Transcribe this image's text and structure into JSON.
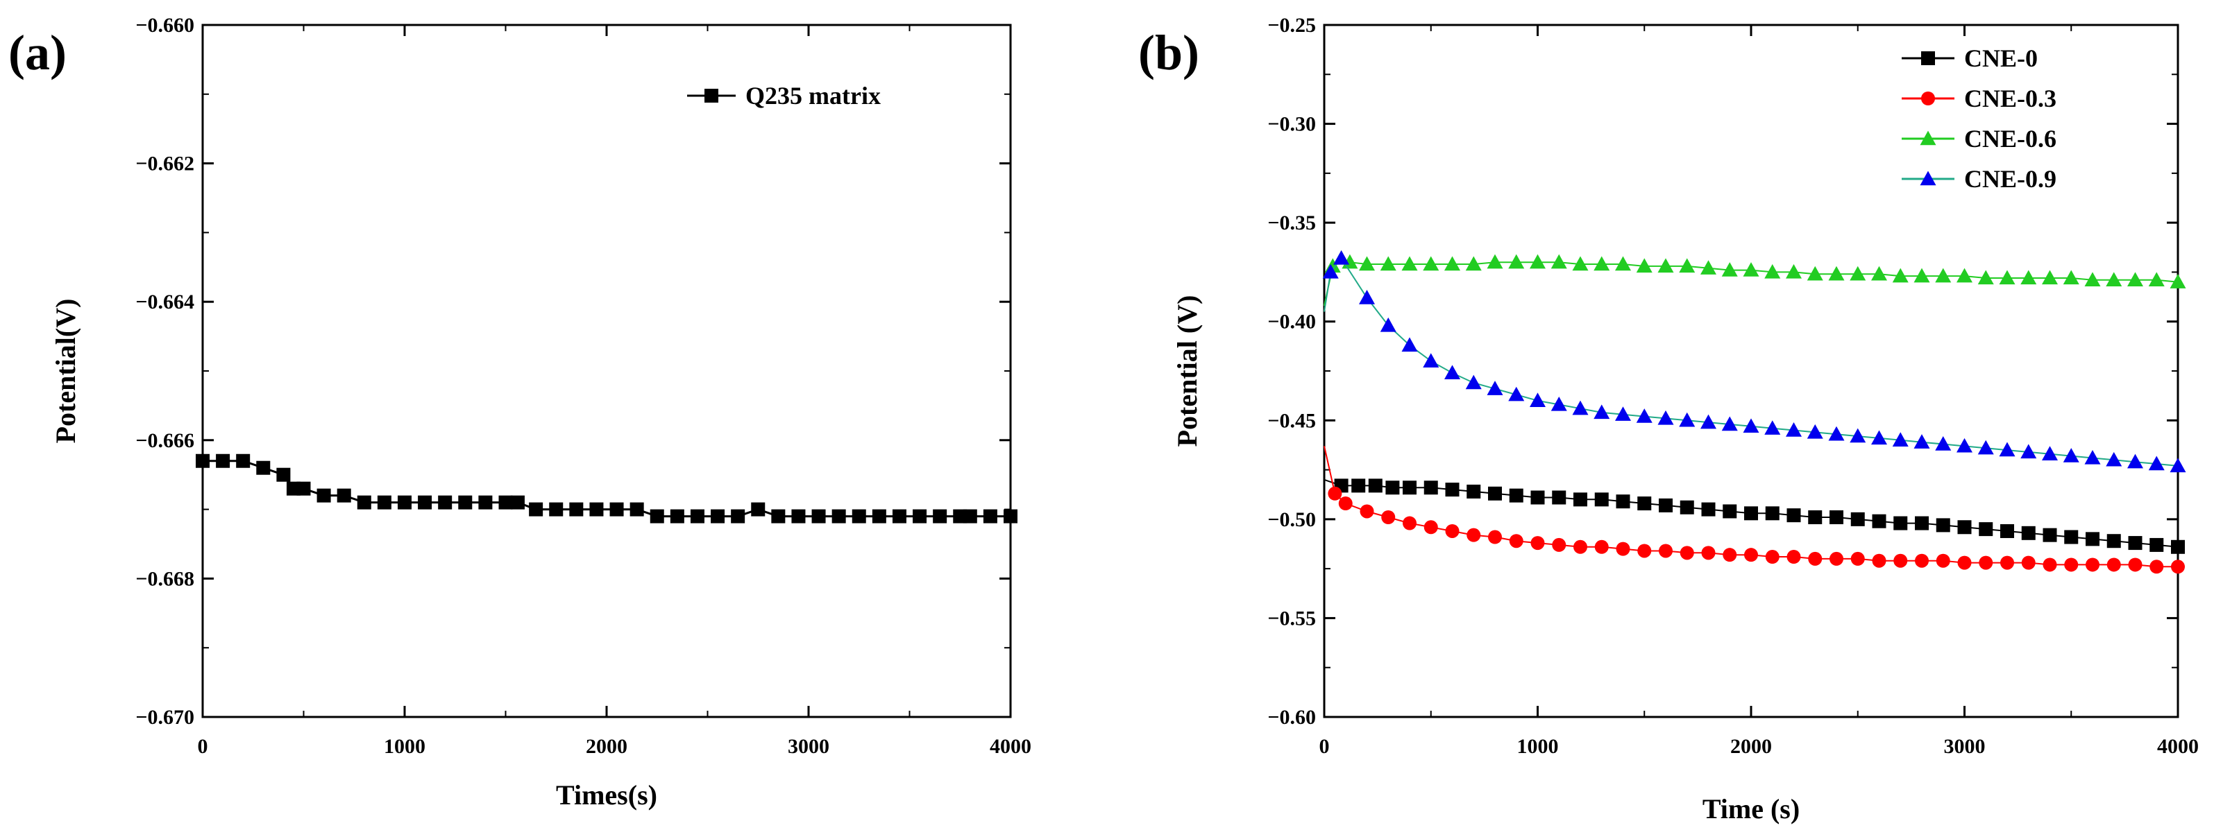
{
  "chart_data": [
    {
      "panel_label": "(a)",
      "type": "line",
      "title": "",
      "xlabel": "Times(s)",
      "ylabel": "Potential(V)",
      "xlim": [
        0,
        4000
      ],
      "ylim": [
        -0.67,
        -0.66
      ],
      "xticks": [
        0,
        1000,
        2000,
        3000,
        4000
      ],
      "yticks": [
        -0.67,
        -0.668,
        -0.666,
        -0.664,
        -0.662,
        -0.66
      ],
      "xtick_labels": [
        "0",
        "1000",
        "2000",
        "3000",
        "4000"
      ],
      "ytick_labels": [
        "−0.670",
        "−0.668",
        "−0.666",
        "−0.664",
        "−0.662",
        "−0.660"
      ],
      "legend_position": "top-right",
      "series": [
        {
          "name": "Q235 matrix",
          "color": "#000000",
          "marker": "square",
          "x": [
            0,
            100,
            200,
            300,
            400,
            450,
            500,
            600,
            700,
            800,
            900,
            1000,
            1100,
            1200,
            1300,
            1400,
            1500,
            1560,
            1650,
            1750,
            1850,
            1950,
            2050,
            2150,
            2250,
            2350,
            2450,
            2550,
            2650,
            2750,
            2850,
            2950,
            3050,
            3150,
            3250,
            3350,
            3450,
            3550,
            3650,
            3750,
            3800,
            3900,
            4000
          ],
          "y": [
            -0.6663,
            -0.6663,
            -0.6663,
            -0.6664,
            -0.6665,
            -0.6667,
            -0.6667,
            -0.6668,
            -0.6668,
            -0.6669,
            -0.6669,
            -0.6669,
            -0.6669,
            -0.6669,
            -0.6669,
            -0.6669,
            -0.6669,
            -0.6669,
            -0.667,
            -0.667,
            -0.667,
            -0.667,
            -0.667,
            -0.667,
            -0.6671,
            -0.6671,
            -0.6671,
            -0.6671,
            -0.6671,
            -0.667,
            -0.6671,
            -0.6671,
            -0.6671,
            -0.6671,
            -0.6671,
            -0.6671,
            -0.6671,
            -0.6671,
            -0.6671,
            -0.6671,
            -0.6671,
            -0.6671,
            -0.6671
          ]
        }
      ]
    },
    {
      "panel_label": "(b)",
      "type": "line",
      "title": "",
      "xlabel": "Time (s)",
      "ylabel": "Potential (V)",
      "xlim": [
        0,
        4000
      ],
      "ylim": [
        -0.6,
        -0.25
      ],
      "xticks": [
        0,
        1000,
        2000,
        3000,
        4000
      ],
      "yticks": [
        -0.6,
        -0.55,
        -0.5,
        -0.45,
        -0.4,
        -0.35,
        -0.3,
        -0.25
      ],
      "xtick_labels": [
        "0",
        "1000",
        "2000",
        "3000",
        "4000"
      ],
      "ytick_labels": [
        "−0.60",
        "−0.55",
        "−0.50",
        "−0.45",
        "−0.40",
        "−0.35",
        "−0.30",
        "−0.25"
      ],
      "legend_position": "top-right",
      "series": [
        {
          "name": "CNE-0",
          "color": "#000000",
          "marker": "square",
          "x": [
            0,
            80,
            160,
            240,
            320,
            400,
            500,
            600,
            700,
            800,
            900,
            1000,
            1100,
            1200,
            1300,
            1400,
            1500,
            1600,
            1700,
            1800,
            1900,
            2000,
            2100,
            2200,
            2300,
            2400,
            2500,
            2600,
            2700,
            2800,
            2900,
            3000,
            3100,
            3200,
            3300,
            3400,
            3500,
            3600,
            3700,
            3800,
            3900,
            4000
          ],
          "y": [
            -0.48,
            -0.483,
            -0.483,
            -0.483,
            -0.484,
            -0.484,
            -0.484,
            -0.485,
            -0.486,
            -0.487,
            -0.488,
            -0.489,
            -0.489,
            -0.49,
            -0.49,
            -0.491,
            -0.492,
            -0.493,
            -0.494,
            -0.495,
            -0.496,
            -0.497,
            -0.497,
            -0.498,
            -0.499,
            -0.499,
            -0.5,
            -0.501,
            -0.502,
            -0.502,
            -0.503,
            -0.504,
            -0.505,
            -0.506,
            -0.507,
            -0.508,
            -0.509,
            -0.51,
            -0.511,
            -0.512,
            -0.513,
            -0.514
          ]
        },
        {
          "name": "CNE-0.3",
          "color": "#ff0000",
          "marker": "circle",
          "x": [
            0,
            50,
            100,
            200,
            300,
            400,
            500,
            600,
            700,
            800,
            900,
            1000,
            1100,
            1200,
            1300,
            1400,
            1500,
            1600,
            1700,
            1800,
            1900,
            2000,
            2100,
            2200,
            2300,
            2400,
            2500,
            2600,
            2700,
            2800,
            2900,
            3000,
            3100,
            3200,
            3300,
            3400,
            3500,
            3600,
            3700,
            3800,
            3900,
            4000
          ],
          "y": [
            -0.463,
            -0.487,
            -0.492,
            -0.496,
            -0.499,
            -0.502,
            -0.504,
            -0.506,
            -0.508,
            -0.509,
            -0.511,
            -0.512,
            -0.513,
            -0.514,
            -0.514,
            -0.515,
            -0.516,
            -0.516,
            -0.517,
            -0.517,
            -0.518,
            -0.518,
            -0.519,
            -0.519,
            -0.52,
            -0.52,
            -0.52,
            -0.521,
            -0.521,
            -0.521,
            -0.521,
            -0.522,
            -0.522,
            -0.522,
            -0.522,
            -0.523,
            -0.523,
            -0.523,
            -0.523,
            -0.523,
            -0.524,
            -0.524
          ]
        },
        {
          "name": "CNE-0.6",
          "color": "#22cc22",
          "marker": "triangle",
          "x": [
            0,
            40,
            80,
            120,
            200,
            300,
            400,
            500,
            600,
            700,
            800,
            900,
            1000,
            1100,
            1200,
            1300,
            1400,
            1500,
            1600,
            1700,
            1800,
            1900,
            2000,
            2100,
            2200,
            2300,
            2400,
            2500,
            2600,
            2700,
            2800,
            2900,
            3000,
            3100,
            3200,
            3300,
            3400,
            3500,
            3600,
            3700,
            3800,
            3900,
            4000
          ],
          "y": [
            -0.392,
            -0.372,
            -0.368,
            -0.37,
            -0.371,
            -0.371,
            -0.371,
            -0.371,
            -0.371,
            -0.371,
            -0.37,
            -0.37,
            -0.37,
            -0.37,
            -0.371,
            -0.371,
            -0.371,
            -0.372,
            -0.372,
            -0.372,
            -0.373,
            -0.374,
            -0.374,
            -0.375,
            -0.375,
            -0.376,
            -0.376,
            -0.376,
            -0.376,
            -0.377,
            -0.377,
            -0.377,
            -0.377,
            -0.378,
            -0.378,
            -0.378,
            -0.378,
            -0.378,
            -0.379,
            -0.379,
            -0.379,
            -0.379,
            -0.38
          ]
        },
        {
          "name": "CNE-0.9",
          "color": "#0000ee",
          "marker": "triangle",
          "x": [
            0,
            30,
            80,
            200,
            300,
            400,
            500,
            600,
            700,
            800,
            900,
            1000,
            1100,
            1200,
            1300,
            1400,
            1500,
            1600,
            1700,
            1800,
            1900,
            2000,
            2100,
            2200,
            2300,
            2400,
            2500,
            2600,
            2700,
            2800,
            2900,
            3000,
            3100,
            3200,
            3300,
            3400,
            3500,
            3600,
            3700,
            3800,
            3900,
            4000
          ],
          "y": [
            -0.395,
            -0.375,
            -0.368,
            -0.388,
            -0.402,
            -0.412,
            -0.42,
            -0.426,
            -0.431,
            -0.434,
            -0.437,
            -0.44,
            -0.442,
            -0.444,
            -0.446,
            -0.447,
            -0.448,
            -0.449,
            -0.45,
            -0.451,
            -0.452,
            -0.453,
            -0.454,
            -0.455,
            -0.456,
            -0.457,
            -0.458,
            -0.459,
            -0.46,
            -0.461,
            -0.462,
            -0.463,
            -0.464,
            -0.465,
            -0.466,
            -0.467,
            -0.468,
            -0.469,
            -0.47,
            -0.471,
            -0.472,
            -0.473
          ]
        }
      ]
    }
  ]
}
